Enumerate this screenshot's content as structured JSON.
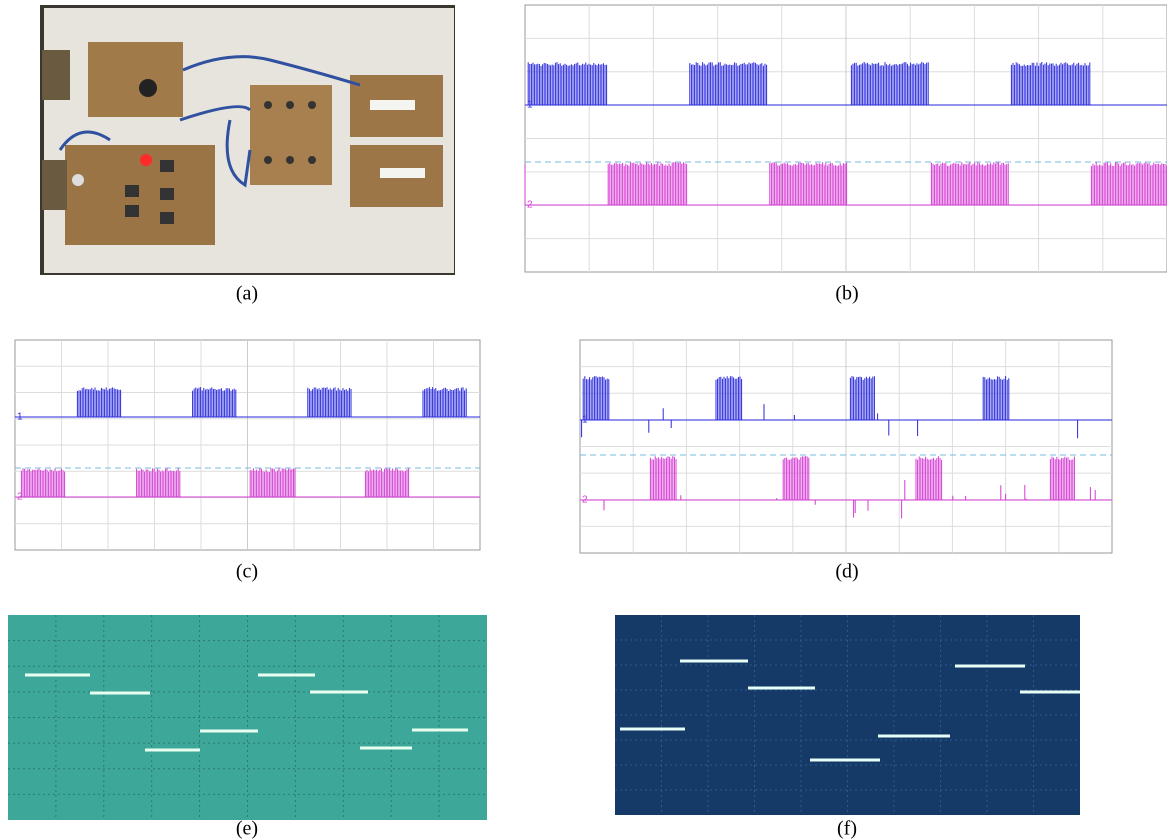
{
  "panels": [
    {
      "caption": "(a)"
    },
    {
      "caption": "(b)",
      "channels": [
        "1",
        "2"
      ]
    },
    {
      "caption": "(c)",
      "channels": [
        "1",
        "2"
      ]
    },
    {
      "caption": "(d)",
      "channels": [
        "1",
        "2"
      ]
    },
    {
      "caption": "(e)"
    },
    {
      "caption": "(f)"
    }
  ]
}
